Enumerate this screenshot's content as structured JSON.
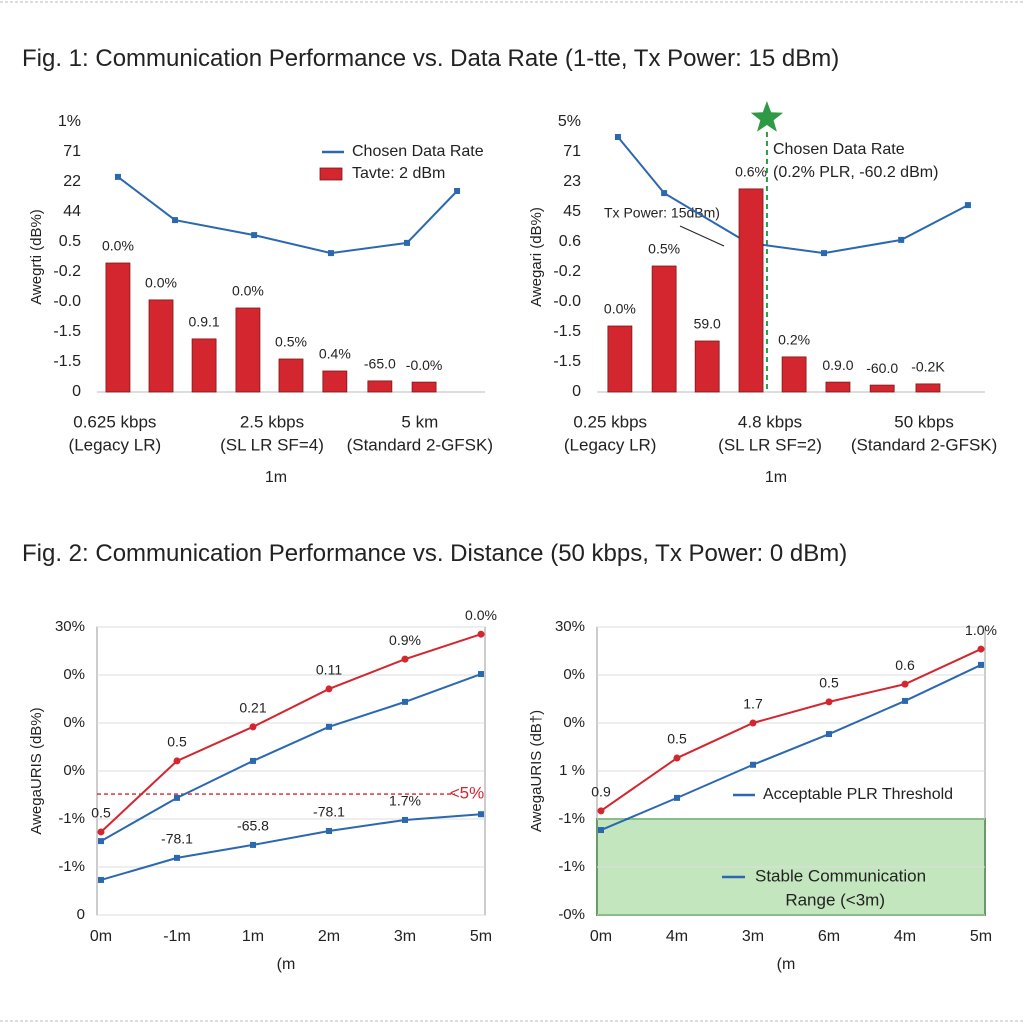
{
  "figures": [
    "Fig. 1:  Communication Performance vs. Data Rate (1-tte, Tx Power: 15 dBm)",
    "Fig. 2:  Communication Performance vs. Distance    (50 kbps, Tx Power: 0 dBm)"
  ],
  "chart_data": [
    {
      "type": "bar",
      "ylabel": "Awegrti (dB%)",
      "xlabel": "1m",
      "legend": "upper right",
      "xlim": [
        0,
        10
      ],
      "ylim": [
        0,
        9
      ],
      "yticks": [
        {
          "value": 9,
          "label": "1%"
        },
        {
          "value": 8,
          "label": "71"
        },
        {
          "value": 7,
          "label": "22"
        },
        {
          "value": 6,
          "label": "44"
        },
        {
          "value": 5,
          "label": "0.5"
        },
        {
          "value": 4,
          "label": "-0.2"
        },
        {
          "value": 3,
          "label": "-0.0"
        },
        {
          "value": 2,
          "label": "-1.5"
        },
        {
          "value": 1,
          "label": "-1.5"
        },
        0
      ],
      "xticks": [
        {
          "value": 0.46,
          "label": [
            "0.625 kbps",
            "(Legacy LR)"
          ]
        },
        {
          "value": 4.51,
          "label": [
            "2.5 kbps",
            "(SL LR SF=4)"
          ]
        },
        {
          "value": 8.32,
          "label": [
            "5 km",
            "(Standard 2-GFSK)"
          ]
        }
      ],
      "series": [
        {
          "name": "Chosen Data Rate",
          "kind": "line",
          "color": "#2b68b0",
          "marker": "square",
          "x": [
            0.54,
            2.01,
            4.05,
            6.03,
            7.99,
            9.28
          ],
          "values": [
            7.17,
            5.73,
            5.23,
            4.63,
            4.97,
            6.7
          ]
        },
        {
          "name": "Tavte: 2 dBm",
          "kind": "bar",
          "color": "#d3262e",
          "x": [
            0.54,
            1.65,
            2.76,
            3.89,
            5.0,
            6.13,
            7.29,
            8.43
          ],
          "values": [
            4.3,
            3.07,
            1.77,
            2.8,
            1.1,
            0.7,
            0.37,
            0.33
          ],
          "value_labels": [
            "0.0%",
            "0.0%",
            "0.9.1",
            "0.0%",
            "0.5%",
            "0.4%",
            "-65.0",
            "-0.0%"
          ]
        }
      ]
    },
    {
      "type": "bar",
      "ylabel": "Awegari (dB%)",
      "xlabel": "1m",
      "xlim": [
        0,
        10
      ],
      "ylim": [
        0,
        9
      ],
      "yticks": [
        {
          "value": 9,
          "label": "5%"
        },
        {
          "value": 8,
          "label": "71"
        },
        {
          "value": 7,
          "label": "23"
        },
        {
          "value": 6,
          "label": "45"
        },
        {
          "value": 5,
          "label": "0.6"
        },
        {
          "value": 4,
          "label": "-0.2"
        },
        {
          "value": 3,
          "label": "-0.0"
        },
        {
          "value": 2,
          "label": "-1.5"
        },
        {
          "value": 1,
          "label": "-1.5"
        },
        0
      ],
      "xticks": [
        {
          "value": 0.34,
          "label": [
            "0.25 kbps",
            "(Legacy LR)"
          ]
        },
        {
          "value": 4.46,
          "label": [
            "4.8 kbps",
            "(SL LR SF=2)"
          ]
        },
        {
          "value": 8.43,
          "label": [
            "50 kbps",
            "(Standard 2-GFSK)"
          ]
        }
      ],
      "series": [
        {
          "kind": "line",
          "color": "#2b68b0",
          "marker": "square",
          "x": [
            0.54,
            1.73,
            3.89,
            5.85,
            7.84,
            9.56
          ],
          "values": [
            8.5,
            6.63,
            4.97,
            4.63,
            5.07,
            6.23
          ]
        },
        {
          "kind": "bar",
          "color": "#d3262e",
          "x": [
            0.59,
            1.73,
            2.84,
            3.97,
            5.08,
            6.21,
            7.35,
            8.53
          ],
          "values": [
            2.2,
            4.2,
            1.7,
            6.77,
            1.17,
            0.33,
            0.23,
            0.27
          ],
          "value_labels": [
            "0.0%",
            "0.5%",
            "59.0",
            "0.6%",
            "0.2%",
            "0.9.0",
            "-60.0",
            "-0.2K"
          ]
        }
      ],
      "chosen": {
        "x": 4.38,
        "color": "#2f9a45"
      },
      "annotations": [
        "Chosen Data Rate",
        "(0.2% PLR, -60.2 dBm)",
        "Tx Power: 15dBm)"
      ]
    },
    {
      "type": "line",
      "ylabel": "AwegaURIS (dB%)",
      "xlabel": "(m",
      "grid": true,
      "categories": [
        "0m",
        "-1m",
        "1m",
        "2m",
        "3m",
        "5m"
      ],
      "ylim": [
        0,
        6
      ],
      "yticks": [
        {
          "value": 6,
          "label": "30%"
        },
        {
          "value": 5,
          "label": "0%"
        },
        {
          "value": 4,
          "label": "0%"
        },
        {
          "value": 3,
          "label": "0%"
        },
        {
          "value": 2,
          "label": "-1%"
        },
        {
          "value": 1,
          "label": "-1%"
        },
        0
      ],
      "series": [
        {
          "color": "#d3262e",
          "marker": "circle",
          "values": [
            1.73,
            3.21,
            3.92,
            4.71,
            5.33,
            5.85
          ],
          "value_labels": [
            "0.5",
            "0.5",
            "0.21",
            "0.11",
            "0.9%",
            "0.0%"
          ]
        },
        {
          "color": "#2b68b0",
          "marker": "square",
          "values": [
            1.54,
            2.44,
            3.21,
            3.92,
            4.44,
            5.02
          ]
        },
        {
          "color": "#2b68b0",
          "marker": "square",
          "values": [
            0.73,
            1.19,
            1.46,
            1.75,
            1.98,
            2.1
          ],
          "value_labels": [
            null,
            "-78.1",
            "-65.8",
            "-78.1",
            "1.7%",
            null
          ]
        }
      ],
      "threshold": {
        "value": 2.52,
        "color": "#d3262e",
        "label": "<5%"
      }
    },
    {
      "type": "line",
      "ylabel": "AwegaURIS (dB†)",
      "xlabel": "(m",
      "grid": true,
      "legend": "center right",
      "categories": [
        "0m",
        "4m",
        "3m",
        "6m",
        "4m",
        "5m"
      ],
      "ylim": [
        0,
        6
      ],
      "yticks": [
        {
          "value": 6,
          "label": "30%"
        },
        {
          "value": 5,
          "label": "0%"
        },
        {
          "value": 4,
          "label": "0%"
        },
        {
          "value": 3,
          "label": "1 %"
        },
        {
          "value": 2,
          "label": "-1%"
        },
        {
          "value": 1,
          "label": "-1%"
        },
        {
          "value": 0,
          "label": "-0%"
        }
      ],
      "series": [
        {
          "color": "#d3262e",
          "marker": "circle",
          "values": [
            2.17,
            3.27,
            4.0,
            4.44,
            4.81,
            5.54
          ],
          "value_labels": [
            "0.9",
            "0.5",
            "1.7",
            "0.5",
            "0.6",
            "1.0%"
          ]
        },
        {
          "name": "Acceptable PLR Threshold",
          "color": "#2b68b0",
          "marker": "square",
          "values": [
            1.77,
            2.44,
            3.13,
            3.77,
            4.46,
            5.21
          ]
        }
      ],
      "region": {
        "range": [
          0,
          2.0
        ],
        "color": "#7cc872",
        "border": "#3c9a3c",
        "line_color": "#2b68b0",
        "label": [
          "Stable Communication",
          "Range (<3m)"
        ]
      }
    }
  ]
}
